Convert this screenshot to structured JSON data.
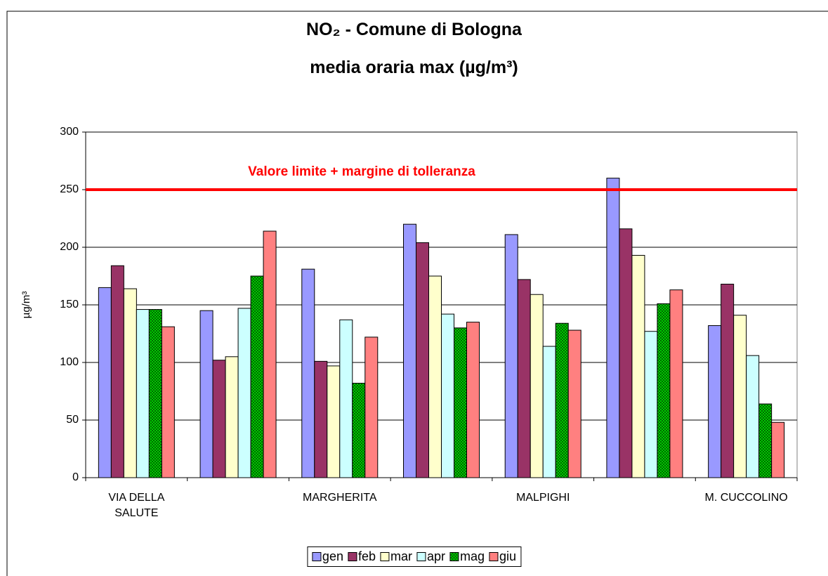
{
  "chart_data": {
    "type": "bar",
    "title": "NO₂ - Comune di Bologna",
    "subtitle": "media oraria max  (µg/m³)",
    "y_label": "µg/m³",
    "categories": [
      "VIA DELLA SALUTE",
      null,
      "MARGHERITA",
      null,
      "MALPIGHI",
      null,
      "M. CUCCOLINO"
    ],
    "series": [
      {
        "name": "gen",
        "color": "#9999ff",
        "values": [
          165,
          145,
          181,
          220,
          211,
          260,
          132
        ]
      },
      {
        "name": "feb",
        "color": "#993366",
        "values": [
          184,
          102,
          101,
          204,
          172,
          216,
          168
        ]
      },
      {
        "name": "mar",
        "color": "#ffffcc",
        "values": [
          164,
          105,
          97,
          175,
          159,
          193,
          141
        ]
      },
      {
        "name": "apr",
        "color": "#ccffff",
        "values": [
          146,
          147,
          137,
          142,
          114,
          127,
          106
        ]
      },
      {
        "name": "mag",
        "color": "#00cc00",
        "pattern": "checker",
        "values": [
          146,
          175,
          82,
          130,
          134,
          151,
          64
        ]
      },
      {
        "name": "giu",
        "color": "#ff8080",
        "values": [
          131,
          214,
          122,
          135,
          128,
          163,
          48
        ]
      }
    ],
    "reference_line": {
      "value": 250,
      "label": "Valore limite + margine di tolleranza",
      "color": "#ff0000"
    },
    "ylim": [
      0,
      300
    ],
    "yticks": [
      0,
      50,
      100,
      150,
      200,
      250,
      300
    ],
    "grid": true,
    "legend": "bottom"
  }
}
